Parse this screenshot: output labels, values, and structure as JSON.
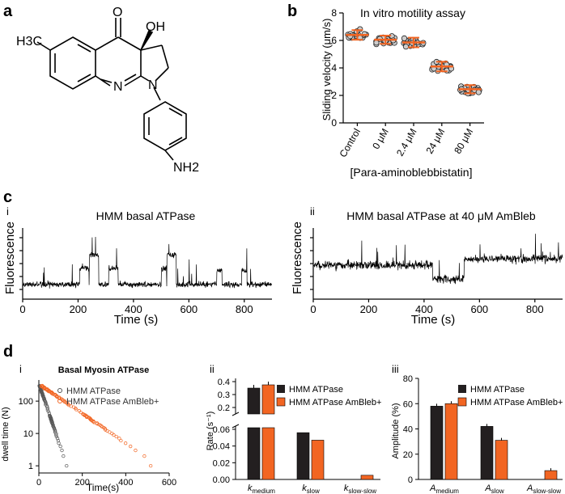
{
  "panels": {
    "a": "a",
    "b": "b",
    "c": "c",
    "d": "d",
    "ci": "i",
    "cii": "ii",
    "di": "i",
    "dii": "ii",
    "diii": "iii"
  },
  "structure": {
    "h3c": "H3C",
    "o": "O",
    "oh": "OH",
    "n_ring": "N",
    "n_pyr": "N",
    "nh2": "NH2"
  },
  "chart_data": [
    {
      "id": "b",
      "type": "scatter",
      "title": "In vitro motility assay",
      "xlabel": "[Para-aminoblebbistatin]",
      "ylabel": "Sliding velocity (μm/s)",
      "categories": [
        "Control",
        "0 μM",
        "2.4 μM",
        "24 μM",
        "80 μM"
      ],
      "means": [
        6.4,
        6.05,
        5.85,
        4.1,
        2.45
      ],
      "sd": [
        0.35,
        0.3,
        0.35,
        0.35,
        0.3
      ],
      "ylim": [
        0,
        8
      ],
      "yticks": [
        0,
        2,
        4,
        6,
        8
      ],
      "point_color": "#cccccc",
      "accent": "#f26522"
    },
    {
      "id": "c-i",
      "type": "line",
      "title": "HMM basal ATPase",
      "xlabel": "Time (s)",
      "ylabel": "Fluorescence",
      "xlim": [
        0,
        900
      ],
      "xticks": [
        0,
        200,
        400,
        600,
        800
      ]
    },
    {
      "id": "c-ii",
      "type": "line",
      "title": "HMM basal ATPase at 40 μM AmBleb",
      "xlabel": "Time (s)",
      "ylabel": "Fluorescence",
      "xlim": [
        0,
        900
      ],
      "xticks": [
        0,
        200,
        400,
        600,
        800
      ]
    },
    {
      "id": "d-i",
      "type": "scatter",
      "title": "Basal Myosin ATPase",
      "xlabel": "Time(s)",
      "ylabel": "dwell time (N)",
      "xlim": [
        0,
        600
      ],
      "xticks": [
        "0",
        "200",
        "400",
        "600"
      ],
      "yticks": [
        "1",
        "10",
        "100"
      ],
      "series": [
        {
          "name": "HMM ATPase",
          "color": "#555555"
        },
        {
          "name": "HMM ATPase AmBleb+",
          "color": "#f26522"
        }
      ]
    },
    {
      "id": "d-ii",
      "type": "bar",
      "ylabel": "Rate (s⁻¹)",
      "categories": [
        "k_medium",
        "k_slow",
        "k_slow-slow"
      ],
      "series": [
        {
          "name": "HMM ATPase",
          "color": "#231f20",
          "values": [
            0.35,
            0.056,
            0
          ]
        },
        {
          "name": "HMM ATPase AmBleb+",
          "color": "#f26522",
          "values": [
            0.375,
            0.047,
            0.005
          ]
        }
      ],
      "yticks_lower": [
        "0.00",
        "0.02",
        "0.04",
        "0.06"
      ],
      "yticks_upper": [
        "0.2",
        "0.3",
        "0.4"
      ]
    },
    {
      "id": "d-iii",
      "type": "bar",
      "ylabel": "Amplitude (%)",
      "categories": [
        "A_medium",
        "A_slow",
        "A_slow-slow"
      ],
      "series": [
        {
          "name": "HMM ATPase",
          "color": "#231f20",
          "values": [
            58,
            42,
            0
          ]
        },
        {
          "name": "HMM ATPase AmBleb+",
          "color": "#f26522",
          "values": [
            60,
            31,
            7
          ]
        }
      ],
      "ylim": [
        0,
        80
      ],
      "yticks": [
        "0",
        "20",
        "40",
        "60",
        "80"
      ]
    }
  ],
  "bar_subscript": {
    "k": "k",
    "a": "A",
    "medium": "medium",
    "slow": "slow",
    "slowslow": "slow-slow"
  }
}
